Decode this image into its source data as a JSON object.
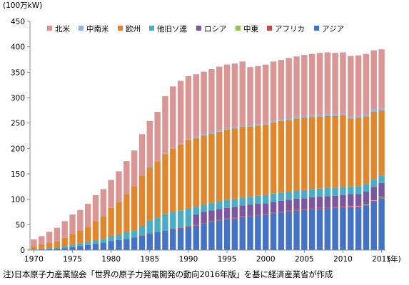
{
  "chart_data": {
    "type": "bar",
    "stacked": true,
    "ylabel": "(100万kW)",
    "xlabel": "(年)",
    "ylim": [
      0,
      450
    ],
    "yticks": [
      0,
      50,
      100,
      150,
      200,
      250,
      300,
      350,
      400,
      450
    ],
    "xtick_labels": [
      "1970",
      "1975",
      "1980",
      "1985",
      "1990",
      "1995",
      "2000",
      "2005",
      "2010",
      "2015"
    ],
    "grid": false,
    "legend_position": "top",
    "categories": [
      1970,
      1971,
      1972,
      1973,
      1974,
      1975,
      1976,
      1977,
      1978,
      1979,
      1980,
      1981,
      1982,
      1983,
      1984,
      1985,
      1986,
      1987,
      1988,
      1989,
      1990,
      1991,
      1992,
      1993,
      1994,
      1995,
      1996,
      1997,
      1998,
      1999,
      2000,
      2001,
      2002,
      2003,
      2004,
      2005,
      2006,
      2007,
      2008,
      2009,
      2010,
      2011,
      2012,
      2013,
      2014,
      2015
    ],
    "series": [
      {
        "name": "アジア",
        "color": "#4472c4",
        "values": [
          1,
          1.5,
          2,
          3,
          4,
          6,
          8,
          10,
          12,
          14,
          18,
          20,
          22,
          25,
          28,
          32,
          35,
          38,
          40,
          42,
          45,
          48,
          52,
          55,
          58,
          60,
          62,
          65,
          66,
          68,
          69,
          72,
          74,
          76,
          78,
          79,
          80,
          81,
          82,
          83,
          84,
          84,
          84,
          88,
          95,
          102
        ]
      },
      {
        "name": "アフリカ",
        "color": "#c0504d",
        "values": [
          0,
          0,
          0,
          0,
          0,
          0,
          0,
          0,
          0,
          0,
          0,
          0,
          0,
          0,
          1,
          1,
          1,
          1,
          2,
          2,
          2,
          2,
          2,
          2,
          2,
          2,
          2,
          2,
          2,
          2,
          2,
          2,
          2,
          2,
          2,
          2,
          2,
          2,
          2,
          2,
          2,
          2,
          2,
          2,
          2,
          2
        ]
      },
      {
        "name": "中東",
        "color": "#9bbb59",
        "values": [
          0,
          0,
          0,
          0,
          0,
          0,
          0,
          0,
          0,
          0,
          0,
          0,
          0,
          0,
          0,
          0,
          0,
          0,
          0,
          0,
          0,
          0,
          0,
          0,
          0,
          0,
          0,
          0,
          0,
          0,
          0,
          0,
          0,
          0,
          0,
          0,
          0,
          0,
          0,
          0,
          0,
          1,
          1,
          1,
          1,
          1
        ]
      },
      {
        "name": "ロシア",
        "color": "#7a57a0",
        "values": [
          0,
          0,
          0,
          0,
          0,
          0,
          0,
          0,
          0,
          0,
          0,
          0,
          0,
          0,
          0,
          0,
          0,
          0,
          0,
          0,
          0,
          20,
          21,
          21,
          21,
          21,
          21,
          21,
          21,
          21,
          21,
          21,
          21,
          21,
          21,
          21,
          22,
          22,
          22,
          22,
          22,
          23,
          23,
          24,
          26,
          27
        ]
      },
      {
        "name": "他旧ソ連",
        "color": "#4bacc6",
        "values": [
          1,
          1,
          2,
          2,
          3,
          4,
          5,
          6,
          7,
          8,
          10,
          11,
          13,
          14,
          18,
          25,
          27,
          32,
          33,
          34,
          35,
          15,
          15,
          15,
          15,
          16,
          16,
          16,
          16,
          16,
          16,
          16,
          16,
          16,
          16,
          16,
          16,
          16,
          16,
          16,
          16,
          15,
          15,
          15,
          15,
          15
        ]
      },
      {
        "name": "欧州",
        "color": "#e0872e",
        "values": [
          6,
          8,
          10,
          12,
          17,
          22,
          26,
          30,
          38,
          45,
          55,
          64,
          75,
          87,
          100,
          105,
          112,
          118,
          125,
          130,
          135,
          135,
          135,
          136,
          137,
          138,
          138,
          139,
          138,
          138,
          139,
          140,
          141,
          141,
          142,
          142,
          142,
          142,
          142,
          141,
          141,
          134,
          135,
          133,
          133,
          128
        ]
      },
      {
        "name": "中南米",
        "color": "#95b3d7",
        "values": [
          0,
          0,
          0,
          0,
          0,
          0,
          0,
          0,
          0,
          0,
          0,
          0,
          0,
          0,
          1,
          1,
          1,
          2,
          2,
          2,
          2,
          3,
          3,
          3,
          3,
          3,
          3,
          3,
          3,
          3,
          3,
          4,
          4,
          4,
          4,
          4,
          4,
          4,
          4,
          4,
          4,
          4,
          4,
          4,
          5,
          5
        ]
      },
      {
        "name": "北米",
        "color": "#d99694",
        "values": [
          13,
          17,
          22,
          27,
          33,
          38,
          40,
          45,
          51,
          53,
          55,
          60,
          65,
          70,
          80,
          90,
          96,
          112,
          120,
          123,
          123,
          123,
          123,
          124,
          125,
          125,
          125,
          125,
          114,
          114,
          115,
          116,
          116,
          118,
          118,
          120,
          120,
          121,
          121,
          120,
          120,
          119,
          119,
          119,
          116,
          115
        ]
      }
    ]
  },
  "legend": {
    "entries": [
      "北米",
      "中南米",
      "欧州",
      "他旧ソ連",
      "ロシア",
      "中東",
      "アフリカ",
      "アジア"
    ]
  },
  "note": "注)日本原子力産業協会「世界の原子力発電開発の動向2016年版」を基に経済産業省が作成"
}
